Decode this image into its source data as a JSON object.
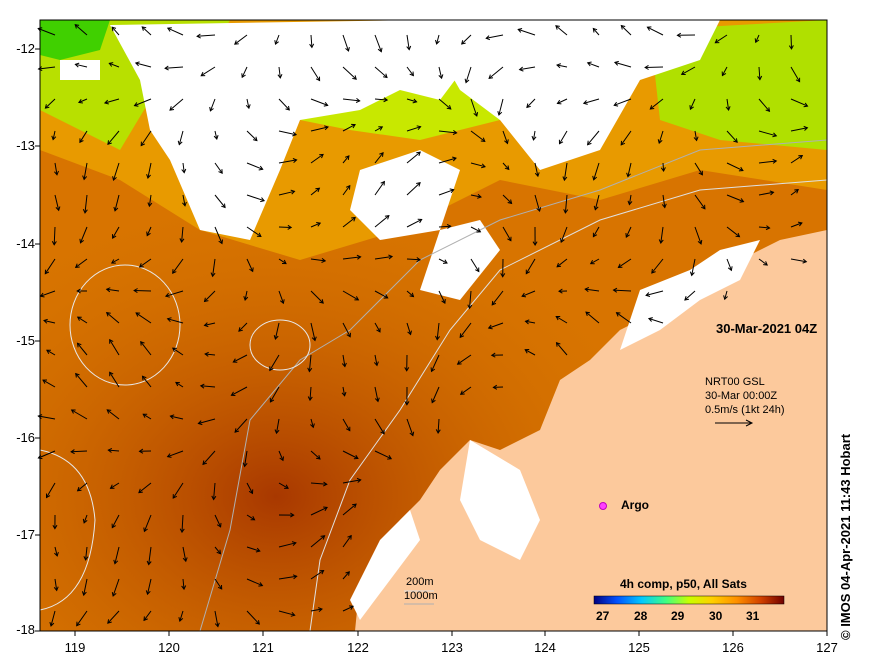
{
  "map": {
    "datetime_label": "30-Mar-2021 04Z",
    "current_vector_legend": {
      "line1": "NRT00 GSL",
      "line2": "30-Mar 00:00Z",
      "line3": "0.5m/s (1kt 24h)"
    },
    "argo_label": "Argo",
    "bathymetry_legend": {
      "line1": "200m",
      "line2": "1000m"
    },
    "colorbar": {
      "title": "4h comp, p50, All Sats",
      "ticks": [
        "27",
        "28",
        "29",
        "30",
        "31"
      ],
      "colors": [
        "#000080",
        "#0040ff",
        "#00c0ff",
        "#40ff80",
        "#c0ff00",
        "#ffd000",
        "#ff8000",
        "#d04000",
        "#800000"
      ]
    },
    "credit": "© IMOS 04-Apr-2021 11:43 Hobart",
    "y_axis_labels": [
      "-12",
      "-13",
      "-14",
      "-15",
      "-16",
      "-17",
      "-18"
    ],
    "x_axis_labels": [
      "119",
      "120",
      "121",
      "122",
      "123",
      "124",
      "125",
      "126",
      "127"
    ],
    "colors": {
      "land": "#fcc99c",
      "no_data": "#ffffff",
      "sst_warm": "#b04800",
      "sst_mid": "#e08000",
      "sst_cool": "#9adc00"
    }
  }
}
